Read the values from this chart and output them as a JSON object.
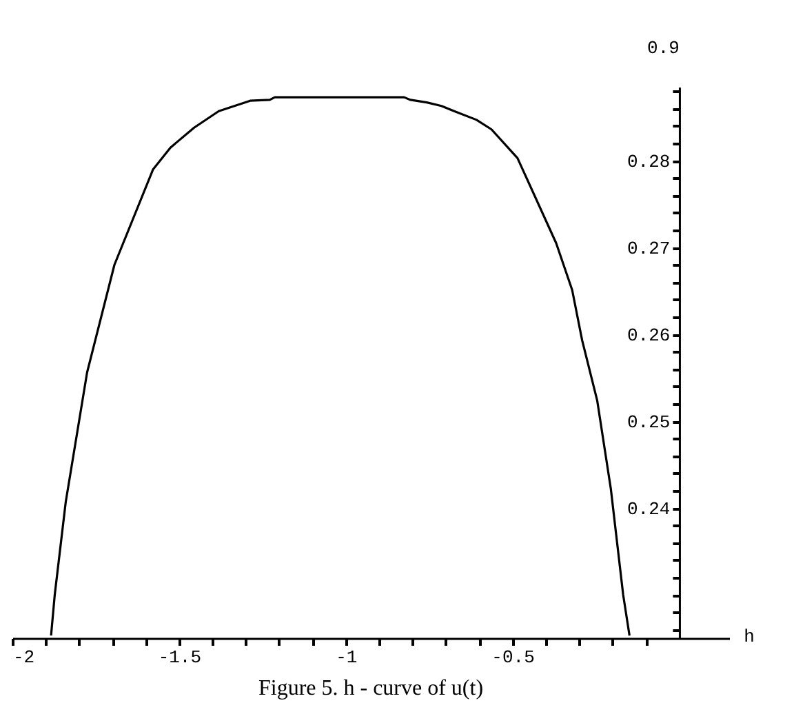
{
  "chart_data": {
    "type": "line",
    "title": "Figure 5. h - curve of u(t)",
    "xlabel": "h",
    "ylabel": "0.9",
    "x": [
      -1.884,
      -1.873,
      -1.84,
      -1.776,
      -1.694,
      -1.578,
      -1.526,
      -1.455,
      -1.381,
      -1.287,
      -1.228,
      -1.213,
      -0.825,
      -0.806,
      -0.757,
      -0.713,
      -0.675,
      -0.608,
      -0.563,
      -0.485,
      -0.369,
      -0.321,
      -0.291,
      -0.246,
      -0.205,
      -0.168,
      -0.149
    ],
    "series": [
      {
        "color": "#000000",
        "values": [
          0.2253,
          0.23,
          0.2407,
          0.2556,
          0.268,
          0.279,
          0.2815,
          0.2838,
          0.2857,
          0.2869,
          0.287,
          0.2873,
          0.2873,
          0.287,
          0.2867,
          0.2863,
          0.2857,
          0.2847,
          0.2836,
          0.2803,
          0.2705,
          0.2651,
          0.2593,
          0.2524,
          0.2422,
          0.23,
          0.2253
        ]
      }
    ],
    "xlim": [
      -2,
      0.15
    ],
    "ylim": [
      0.225,
      0.2885
    ],
    "xticks": [
      -2,
      {
        "value": -1.9,
        "label": null
      },
      {
        "value": -1.8,
        "label": null
      },
      {
        "value": -1.7,
        "label": null
      },
      {
        "value": -1.6,
        "label": null
      },
      -1.5,
      {
        "value": -1.4,
        "label": null
      },
      {
        "value": -1.3,
        "label": null
      },
      {
        "value": -1.2,
        "label": null
      },
      {
        "value": -1.1,
        "label": null
      },
      -1,
      {
        "value": -0.9,
        "label": null
      },
      {
        "value": -0.8,
        "label": null
      },
      {
        "value": -0.7,
        "label": null
      },
      {
        "value": -0.6,
        "label": null
      },
      -0.5,
      {
        "value": -0.4,
        "label": null
      },
      {
        "value": -0.3,
        "label": null
      },
      {
        "value": -0.2,
        "label": null
      },
      {
        "value": -0.1,
        "label": null
      }
    ],
    "yticks": [
      {
        "value": 0.226,
        "label": null
      },
      {
        "value": 0.228,
        "label": null
      },
      {
        "value": 0.23,
        "label": null
      },
      {
        "value": 0.232,
        "label": null
      },
      {
        "value": 0.234,
        "label": null
      },
      {
        "value": 0.236,
        "label": null
      },
      {
        "value": 0.238,
        "label": null
      },
      0.24,
      {
        "value": 0.242,
        "label": null
      },
      {
        "value": 0.244,
        "label": null
      },
      {
        "value": 0.246,
        "label": null
      },
      {
        "value": 0.248,
        "label": null
      },
      0.25,
      {
        "value": 0.252,
        "label": null
      },
      {
        "value": 0.254,
        "label": null
      },
      {
        "value": 0.256,
        "label": null
      },
      {
        "value": 0.258,
        "label": null
      },
      0.26,
      {
        "value": 0.262,
        "label": null
      },
      {
        "value": 0.264,
        "label": null
      },
      {
        "value": 0.266,
        "label": null
      },
      {
        "value": 0.268,
        "label": null
      },
      0.27,
      {
        "value": 0.272,
        "label": null
      },
      {
        "value": 0.274,
        "label": null
      },
      {
        "value": 0.276,
        "label": null
      },
      {
        "value": 0.278,
        "label": null
      },
      0.28,
      {
        "value": 0.282,
        "label": null
      },
      {
        "value": 0.284,
        "label": null
      },
      {
        "value": 0.286,
        "label": null
      },
      {
        "value": 0.288,
        "label": null
      }
    ],
    "grid": false,
    "marker": "none",
    "line_style": "solid"
  }
}
